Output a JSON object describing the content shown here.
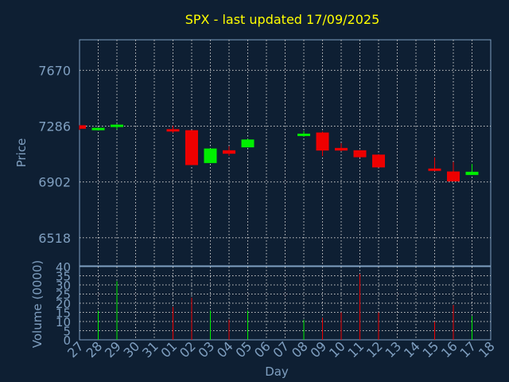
{
  "chart_data": {
    "type": "candlestick",
    "title": "SPX - last updated 17/09/2025",
    "xlabel": "Day",
    "price_panel": {
      "ylabel": "Price",
      "ylim": [
        6325,
        7880
      ],
      "yticks": [
        6518,
        6902,
        7286,
        7670
      ],
      "grid": true
    },
    "volume_panel": {
      "ylabel": "Volume (0000)",
      "ylim": [
        0,
        40
      ],
      "yticks": [
        0,
        5,
        10,
        15,
        20,
        25,
        30,
        35,
        40
      ],
      "grid": true
    },
    "x_tick_labels": [
      "27",
      "28",
      "29",
      "30",
      "31",
      "01",
      "02",
      "03",
      "04",
      "05",
      "06",
      "07",
      "08",
      "09",
      "10",
      "11",
      "12",
      "13",
      "14",
      "15",
      "16",
      "17",
      "18"
    ],
    "x_range": [
      0,
      22
    ],
    "candles": [
      {
        "day": 0,
        "open": 7292,
        "high": 7292,
        "low": 7260,
        "close": 7268,
        "volume": 0
      },
      {
        "day": 1,
        "open": 7262,
        "high": 7276,
        "low": 7256,
        "close": 7270,
        "volume": 16
      },
      {
        "day": 2,
        "open": 7282,
        "high": 7300,
        "low": 7264,
        "close": 7294,
        "volume": 32
      },
      {
        "day": 5,
        "open": 7262,
        "high": 7290,
        "low": 7240,
        "close": 7252,
        "volume": 18
      },
      {
        "day": 6,
        "open": 7258,
        "high": 7258,
        "low": 7020,
        "close": 7018,
        "volume": 23
      },
      {
        "day": 7,
        "open": 7032,
        "high": 7132,
        "low": 7032,
        "close": 7132,
        "volume": 16
      },
      {
        "day": 8,
        "open": 7120,
        "high": 7148,
        "low": 7082,
        "close": 7096,
        "volume": 11
      },
      {
        "day": 9,
        "open": 7140,
        "high": 7198,
        "low": 7140,
        "close": 7194,
        "volume": 16
      },
      {
        "day": 12,
        "open": 7218,
        "high": 7252,
        "low": 7212,
        "close": 7234,
        "volume": 11
      },
      {
        "day": 13,
        "open": 7242,
        "high": 7248,
        "low": 7080,
        "close": 7118,
        "volume": 12
      },
      {
        "day": 14,
        "open": 7136,
        "high": 7168,
        "low": 7112,
        "close": 7118,
        "volume": 15
      },
      {
        "day": 15,
        "open": 7120,
        "high": 7120,
        "low": 7070,
        "close": 7072,
        "volume": 36
      },
      {
        "day": 16,
        "open": 7090,
        "high": 7090,
        "low": 7002,
        "close": 7002,
        "volume": 15
      },
      {
        "day": 19,
        "open": 6990,
        "high": 7070,
        "low": 6982,
        "close": 6982,
        "volume": 10
      },
      {
        "day": 20,
        "open": 6974,
        "high": 7040,
        "low": 6906,
        "close": 6906,
        "volume": 19
      },
      {
        "day": 21,
        "open": 6950,
        "high": 7026,
        "low": 6950,
        "close": 6972,
        "volume": 13
      }
    ],
    "colors": {
      "background": "#0e1f33",
      "up": "#00ee00",
      "down": "#ee0000",
      "grid": "#c8c8c8",
      "axis_text": "#7f9fc0",
      "title": "#ffff00"
    }
  }
}
